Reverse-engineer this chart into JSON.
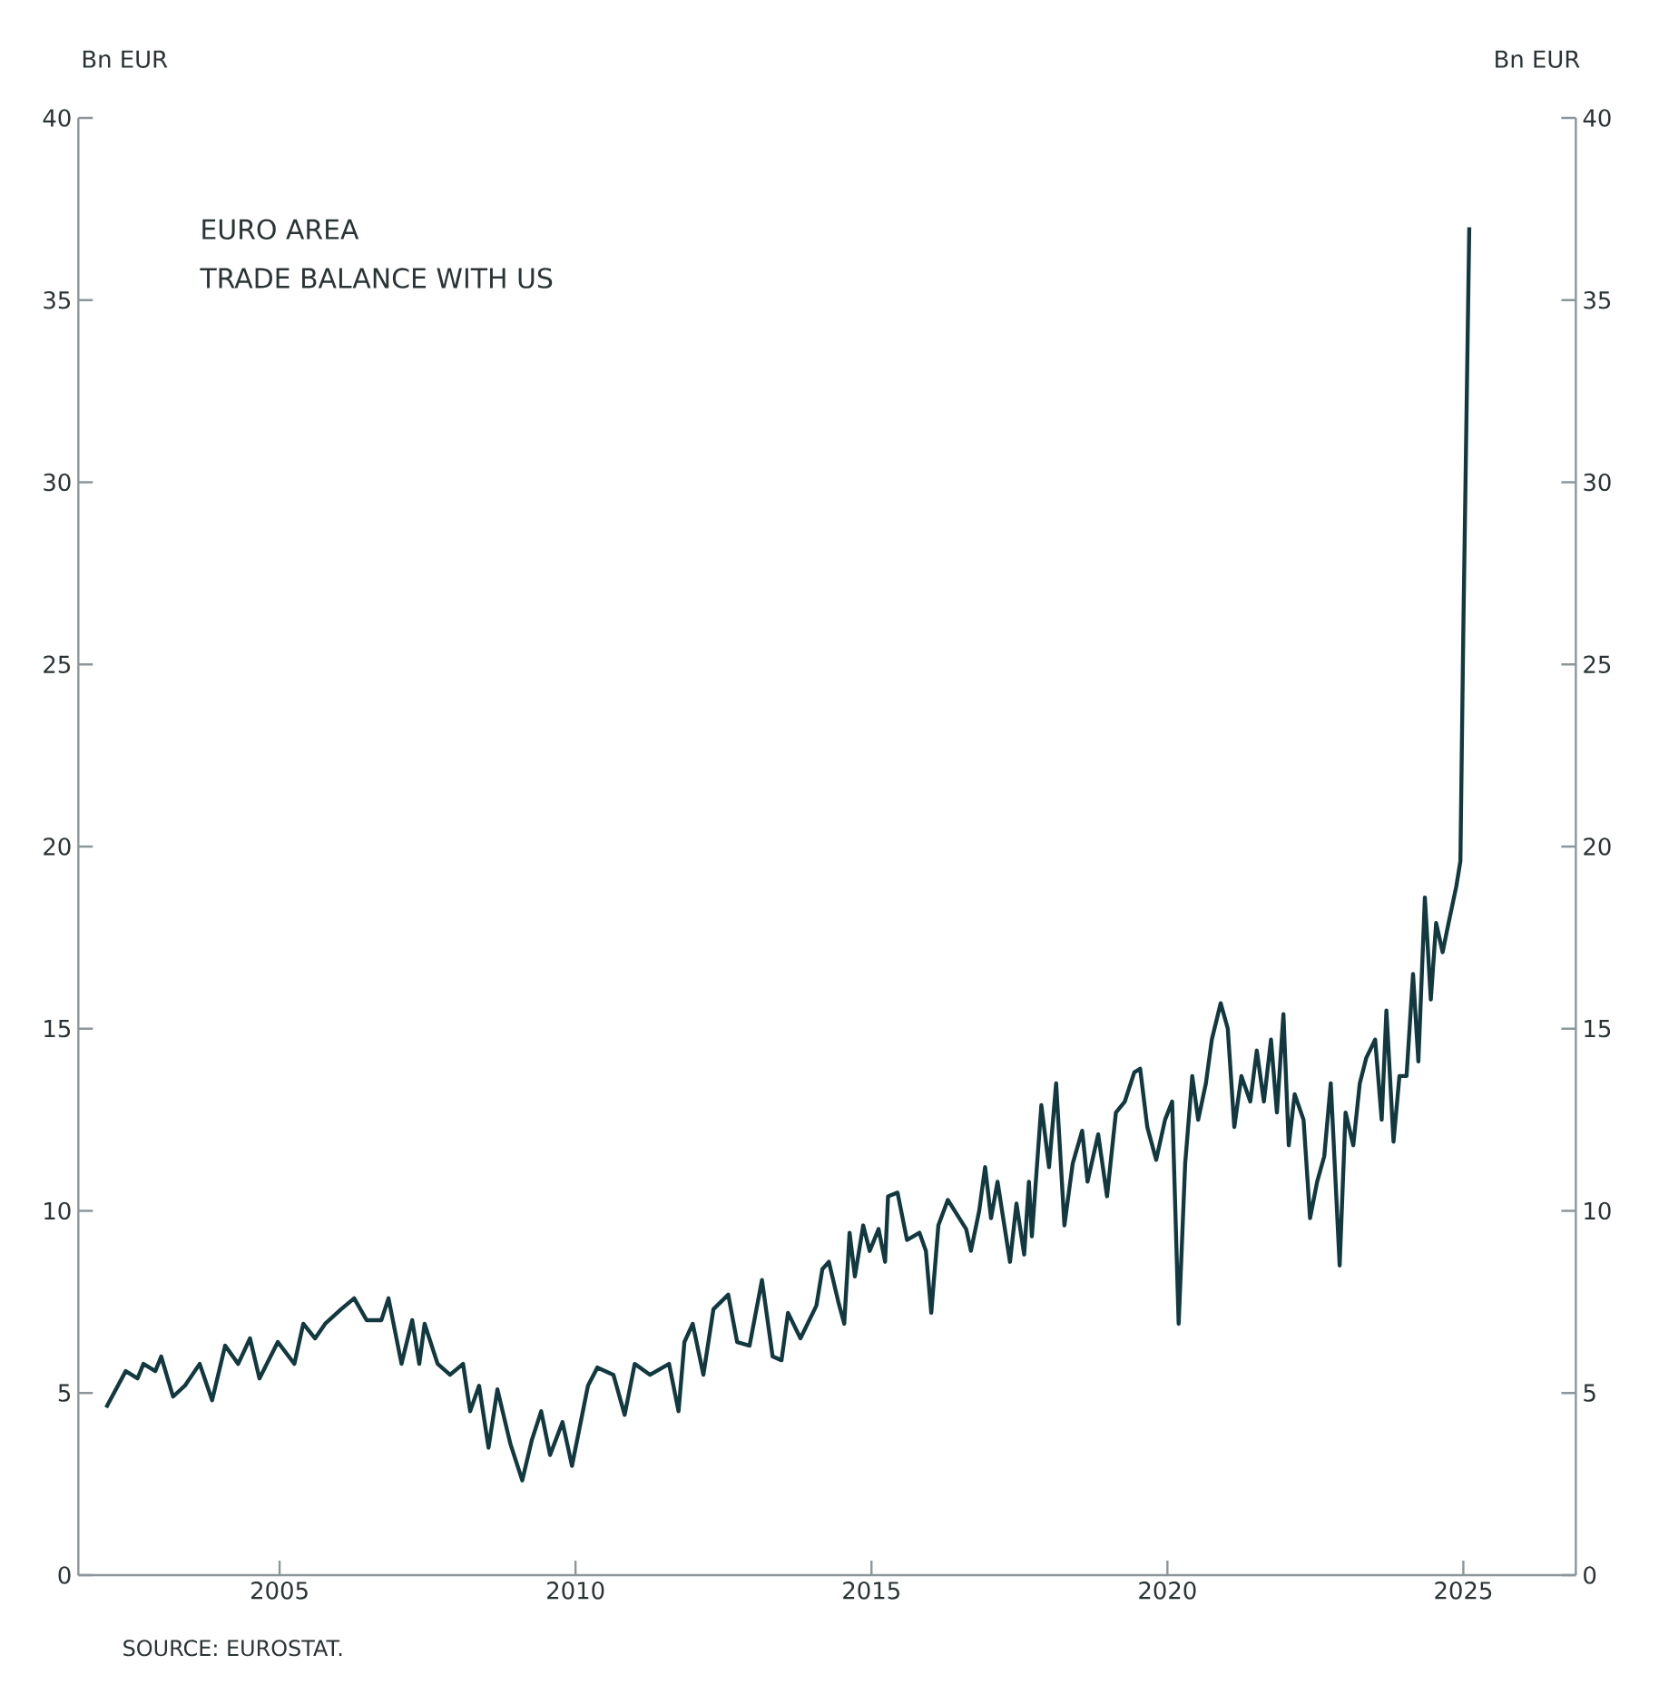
{
  "chart_data": {
    "type": "line",
    "title": "EURO AREA",
    "subtitle": "TRADE BALANCE WITH US",
    "ylabel": "Bn EUR",
    "y2label": "Bn EUR",
    "annotations": [
      "SOURCE: EUROSTAT."
    ],
    "xlim": [
      2001.6,
      2026.9
    ],
    "xticks": [
      2005,
      2010,
      2015,
      2020,
      2025
    ],
    "ylim": [
      0,
      40
    ],
    "yticks": [
      0,
      5,
      10,
      15,
      20,
      25,
      30,
      35,
      40
    ],
    "y2lim": [
      0,
      40
    ],
    "y2ticks": [
      0,
      5,
      10,
      15,
      20,
      25,
      30,
      35,
      40
    ],
    "grid": false,
    "marker": "none",
    "line_style": "solid",
    "series": [
      {
        "color": "#12393f",
        "x": [
          2002.07,
          2002.4,
          2002.6,
          2002.7,
          2002.9,
          2003.0,
          2003.2,
          2003.4,
          2003.65,
          2003.86,
          2004.08,
          2004.3,
          2004.5,
          2004.66,
          2004.97,
          2005.25,
          2005.4,
          2005.6,
          2005.77,
          2006.04,
          2006.26,
          2006.47,
          2006.72,
          2006.84,
          2007.06,
          2007.24,
          2007.36,
          2007.45,
          2007.67,
          2007.88,
          2008.1,
          2008.22,
          2008.37,
          2008.53,
          2008.68,
          2008.9,
          2009.1,
          2009.26,
          2009.42,
          2009.57,
          2009.78,
          2009.94,
          2010.21,
          2010.37,
          2010.64,
          2010.83,
          2011.0,
          2011.26,
          2011.58,
          2011.74,
          2011.84,
          2011.98,
          2012.16,
          2012.33,
          2012.58,
          2012.73,
          2012.94,
          2013.15,
          2013.33,
          2013.48,
          2013.59,
          2013.8,
          2014.07,
          2014.17,
          2014.28,
          2014.44,
          2014.54,
          2014.63,
          2014.72,
          2014.86,
          2014.97,
          2015.12,
          2015.23,
          2015.28,
          2015.44,
          2015.6,
          2015.81,
          2015.92,
          2016.01,
          2016.13,
          2016.29,
          2016.6,
          2016.68,
          2016.82,
          2016.92,
          2017.02,
          2017.13,
          2017.34,
          2017.45,
          2017.58,
          2017.66,
          2017.71,
          2017.87,
          2018.0,
          2018.12,
          2018.26,
          2018.4,
          2018.56,
          2018.65,
          2018.83,
          2018.98,
          2019.13,
          2019.28,
          2019.44,
          2019.54,
          2019.66,
          2019.81,
          2019.96,
          2020.08,
          2020.19,
          2020.3,
          2020.42,
          2020.52,
          2020.65,
          2020.75,
          2020.9,
          2021.02,
          2021.13,
          2021.25,
          2021.4,
          2021.51,
          2021.63,
          2021.75,
          2021.85,
          2021.96,
          2022.05,
          2022.15,
          2022.3,
          2022.41,
          2022.53,
          2022.65,
          2022.76,
          2022.91,
          2023.01,
          2023.14,
          2023.25,
          2023.36,
          2023.51,
          2023.62,
          2023.7,
          2023.82,
          2023.92,
          2024.04,
          2024.15,
          2024.24,
          2024.35,
          2024.45,
          2024.54,
          2024.65,
          2024.75,
          2024.88,
          2024.95,
          2025.0,
          2025.1
        ],
        "values": [
          4.6,
          5.6,
          5.4,
          5.8,
          5.6,
          6.0,
          4.9,
          5.2,
          5.8,
          4.8,
          6.3,
          5.8,
          6.5,
          5.4,
          6.4,
          5.8,
          6.9,
          6.5,
          6.9,
          7.3,
          7.6,
          7.0,
          7.0,
          7.6,
          5.8,
          7.0,
          5.8,
          6.9,
          5.8,
          5.5,
          5.8,
          4.5,
          5.2,
          3.5,
          5.1,
          3.6,
          2.6,
          3.7,
          4.5,
          3.3,
          4.2,
          3.0,
          5.2,
          5.7,
          5.5,
          4.4,
          5.8,
          5.5,
          5.8,
          4.5,
          6.4,
          6.9,
          5.5,
          7.3,
          7.7,
          6.4,
          6.3,
          8.1,
          6.0,
          5.9,
          7.2,
          6.5,
          7.4,
          8.4,
          8.6,
          7.5,
          6.9,
          9.4,
          8.2,
          9.6,
          8.9,
          9.5,
          8.6,
          10.4,
          10.5,
          9.2,
          9.4,
          8.9,
          7.2,
          9.6,
          10.3,
          9.5,
          8.9,
          10.0,
          11.2,
          9.8,
          10.8,
          8.6,
          10.2,
          8.8,
          10.8,
          9.3,
          12.9,
          11.2,
          13.5,
          9.6,
          11.3,
          12.2,
          10.8,
          12.1,
          10.4,
          12.7,
          13.0,
          13.8,
          13.9,
          12.3,
          11.4,
          12.5,
          13.0,
          6.9,
          11.3,
          13.7,
          12.5,
          13.5,
          14.7,
          15.7,
          15.0,
          12.3,
          13.7,
          13.0,
          14.4,
          13.0,
          14.7,
          12.7,
          15.4,
          11.8,
          13.2,
          12.5,
          9.8,
          10.8,
          11.5,
          13.5,
          8.5,
          12.7,
          11.8,
          13.5,
          14.2,
          14.7,
          12.5,
          15.5,
          11.9,
          13.7,
          13.7,
          16.5,
          14.1,
          18.6,
          15.8,
          17.9,
          17.1,
          17.9,
          18.9,
          19.6,
          26.0,
          37.0
        ]
      }
    ]
  }
}
